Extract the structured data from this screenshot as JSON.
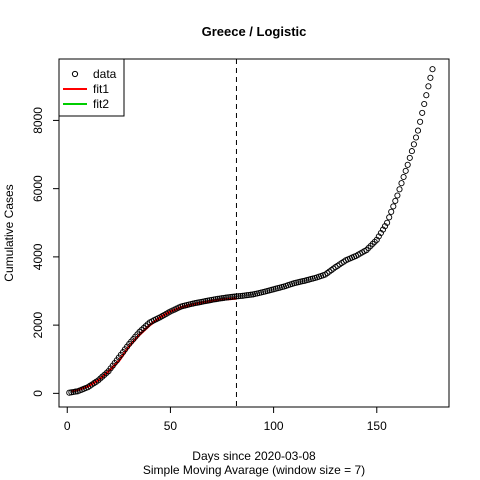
{
  "chart_data": {
    "type": "scatter",
    "title": "Greece / Logistic",
    "xlabel": "Days since 2020-03-08",
    "sublabel": "Simple Moving Avarage (window size = 7)",
    "ylabel": "Cumulative Cases",
    "xlim": [
      -4,
      185
    ],
    "ylim": [
      -400,
      9800
    ],
    "x_ticks": [
      0,
      50,
      100,
      150
    ],
    "y_ticks": [
      0,
      2000,
      4000,
      6000,
      8000
    ],
    "vline_x": 82,
    "legend": {
      "position": "top-left",
      "entries": [
        {
          "label": "data",
          "symbol": "circle",
          "color": "#000000"
        },
        {
          "label": "fit1",
          "symbol": "line",
          "color": "#ff0000"
        },
        {
          "label": "fit2",
          "symbol": "line",
          "color": "#00cd00"
        }
      ]
    },
    "data_anchors": [
      [
        1,
        20
      ],
      [
        5,
        60
      ],
      [
        10,
        180
      ],
      [
        15,
        380
      ],
      [
        20,
        650
      ],
      [
        25,
        1050
      ],
      [
        30,
        1450
      ],
      [
        35,
        1800
      ],
      [
        40,
        2080
      ],
      [
        45,
        2230
      ],
      [
        50,
        2400
      ],
      [
        55,
        2540
      ],
      [
        60,
        2620
      ],
      [
        65,
        2680
      ],
      [
        70,
        2740
      ],
      [
        75,
        2790
      ],
      [
        80,
        2830
      ],
      [
        85,
        2860
      ],
      [
        90,
        2900
      ],
      [
        95,
        2970
      ],
      [
        100,
        3050
      ],
      [
        105,
        3130
      ],
      [
        110,
        3230
      ],
      [
        115,
        3300
      ],
      [
        120,
        3380
      ],
      [
        125,
        3480
      ],
      [
        130,
        3700
      ],
      [
        135,
        3900
      ],
      [
        140,
        4030
      ],
      [
        145,
        4200
      ],
      [
        150,
        4500
      ],
      [
        155,
        5000
      ],
      [
        160,
        5800
      ],
      [
        165,
        6700
      ],
      [
        170,
        7700
      ],
      [
        175,
        9000
      ],
      [
        177,
        9500
      ]
    ],
    "series": [
      {
        "name": "fit1",
        "color": "#ff0000",
        "points": [
          [
            2,
            60
          ],
          [
            5,
            100
          ],
          [
            10,
            200
          ],
          [
            15,
            380
          ],
          [
            20,
            640
          ],
          [
            25,
            950
          ],
          [
            30,
            1380
          ],
          [
            35,
            1720
          ],
          [
            40,
            2000
          ],
          [
            45,
            2230
          ],
          [
            50,
            2400
          ],
          [
            55,
            2520
          ],
          [
            60,
            2600
          ],
          [
            65,
            2660
          ],
          [
            70,
            2710
          ],
          [
            75,
            2750
          ],
          [
            80,
            2770
          ],
          [
            82,
            2780
          ]
        ]
      }
    ]
  }
}
